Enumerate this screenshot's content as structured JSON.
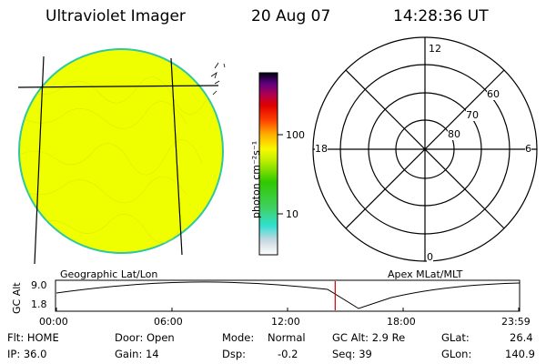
{
  "header": {
    "app_title": "Ultraviolet Imager",
    "date": "20 Aug 07",
    "time": "14:28:36 UT"
  },
  "colorbar": {
    "label": "photon cm⁻²s⁻¹",
    "tick_100": "100",
    "tick_10": "10"
  },
  "polar_plot": {
    "mlt_labels": {
      "top": "12",
      "right": "6",
      "bottom": "0",
      "left": "18"
    },
    "lat_labels": {
      "r60": "60",
      "r70": "70",
      "r80": "80"
    },
    "title": "Apex MLat/MLT"
  },
  "globe": {
    "title": "Geographic Lat/Lon",
    "fill_color": "#f0ff00",
    "limb_color": "#2ec8a0"
  },
  "altitude_timeline": {
    "axis_label": "GC Alt",
    "y_max": "9.0",
    "y_min": "1.8",
    "x_ticks": [
      "00:00",
      "06:00",
      "12:00",
      "18:00",
      "23:59"
    ],
    "marker_time": "14:28",
    "marker_fraction": 0.603,
    "marker_color": "#cc0000"
  },
  "status": {
    "filter": "Flt: HOME",
    "door": "Door: Open",
    "mode_label": "Mode:",
    "mode_value": "Normal",
    "gc_alt": "GC Alt: 2.9 Re",
    "glat_label": "GLat:",
    "glat_value": "26.4",
    "ip": "IP: 36.0",
    "gain": "Gain: 14",
    "dsp_label": "Dsp:",
    "dsp_value": "-0.2",
    "seq": "Seq: 39",
    "glon_label": "GLon:",
    "glon_value": "140.9"
  }
}
